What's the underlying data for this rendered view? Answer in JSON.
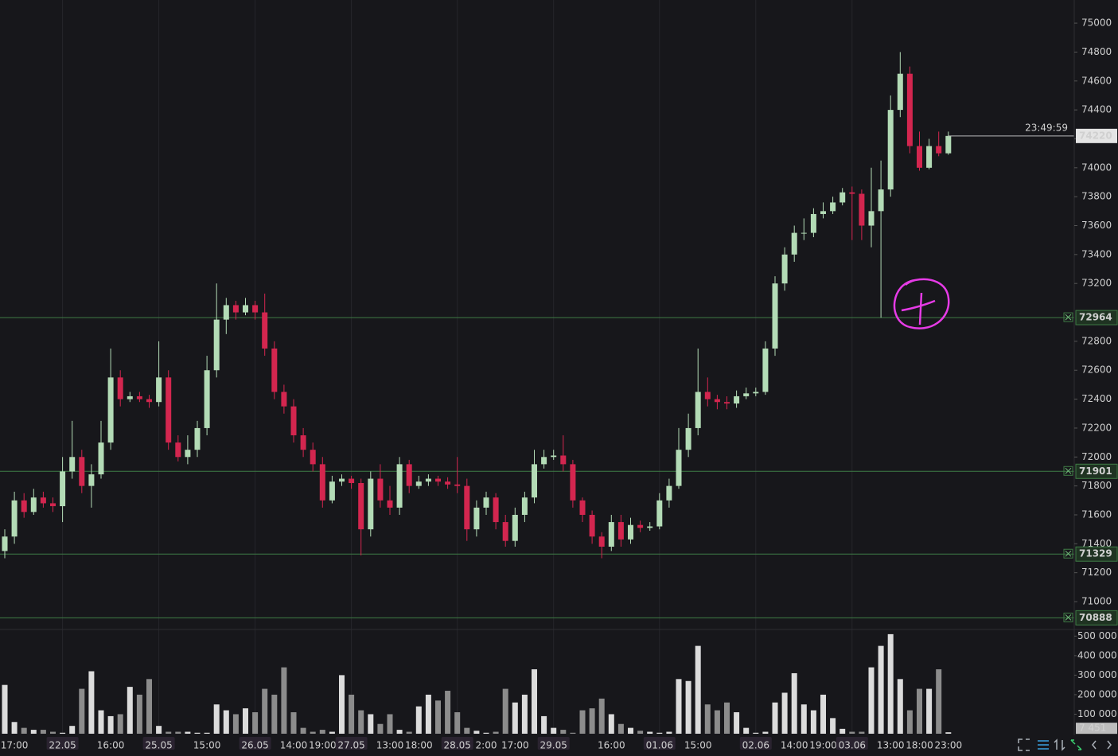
{
  "chart_data": {
    "type": "candlestick",
    "categories": [
      null,
      "17:00",
      null,
      null,
      null,
      null,
      "22.05",
      null,
      null,
      null,
      null,
      "16:00",
      null,
      null,
      null,
      null,
      "25.05",
      null,
      null,
      null,
      null,
      "15:00",
      null,
      null,
      null,
      null,
      "26.05",
      null,
      null,
      null,
      "14:00",
      null,
      null,
      "19:00",
      null,
      null,
      "27.05",
      null,
      null,
      null,
      "13:00",
      null,
      null,
      "18:00",
      null,
      null,
      null,
      "28.05",
      null,
      null,
      "2:00",
      null,
      null,
      "17:00",
      null,
      null,
      null,
      "29.05",
      null,
      null,
      null,
      null,
      null,
      "16:00",
      null,
      null,
      null,
      null,
      "01.06",
      null,
      null,
      null,
      "15:00",
      null,
      null,
      null,
      null,
      null,
      "02.06",
      null,
      null,
      null,
      "14:00",
      null,
      null,
      "19:00",
      null,
      null,
      "03.06",
      null,
      null,
      null,
      "13:00",
      null,
      null,
      "18:00",
      null,
      null,
      "23:00"
    ],
    "open": [
      71350,
      71450,
      71700,
      71620,
      71720,
      71680,
      71660,
      71900,
      72000,
      71800,
      71880,
      72100,
      72550,
      72400,
      72420,
      72400,
      72380,
      72550,
      72100,
      72000,
      72050,
      72200,
      72600,
      72950,
      73050,
      73000,
      73050,
      73000,
      72750,
      72450,
      72350,
      72150,
      72050,
      71950,
      71700,
      71830,
      71850,
      71820,
      71500,
      71850,
      71700,
      71650,
      71950,
      71800,
      71830,
      71850,
      71830,
      71810,
      71800,
      71500,
      71650,
      71720,
      71550,
      71420,
      71600,
      71720,
      71950,
      72000,
      72010,
      71950,
      71700,
      71600,
      71450,
      71380,
      71550,
      71430,
      71530,
      71510,
      71520,
      71700,
      71800,
      72050,
      72200,
      72450,
      72400,
      72380,
      72370,
      72420,
      72440,
      72450,
      72750,
      73200,
      73400,
      73550,
      73550,
      73680,
      73700,
      73760,
      73830,
      73820,
      73600,
      73700,
      73850,
      74400,
      74650,
      74150,
      74000,
      74150,
      74100
    ],
    "high": [
      71500,
      71760,
      71750,
      71780,
      71760,
      71720,
      72000,
      72250,
      72050,
      71950,
      72250,
      72750,
      72600,
      72450,
      72450,
      72430,
      72800,
      72600,
      72150,
      72150,
      72250,
      72700,
      73200,
      73100,
      73080,
      73100,
      73080,
      73130,
      72800,
      72500,
      72400,
      72200,
      72100,
      72000,
      71870,
      71880,
      71870,
      71850,
      71900,
      71950,
      71800,
      72000,
      71980,
      71870,
      71880,
      71870,
      71860,
      72000,
      71850,
      71700,
      71760,
      71750,
      71600,
      71650,
      71760,
      72050,
      72050,
      72050,
      72150,
      71980,
      71720,
      71630,
      71480,
      71600,
      71600,
      71580,
      71560,
      71550,
      71750,
      71850,
      72200,
      72300,
      72750,
      72550,
      72430,
      72420,
      72460,
      72480,
      72480,
      72800,
      73250,
      73450,
      73600,
      73650,
      73720,
      73760,
      73800,
      73860,
      73870,
      73850,
      74000,
      74050,
      74500,
      74800,
      74700,
      74250,
      74200,
      74250,
      74250
    ],
    "low": [
      71300,
      71400,
      71580,
      71600,
      71650,
      71620,
      71550,
      71850,
      71750,
      71650,
      71850,
      72050,
      72350,
      72380,
      72380,
      72340,
      72350,
      72050,
      71970,
      71950,
      72000,
      72150,
      72550,
      72850,
      72950,
      72980,
      72950,
      72700,
      72400,
      72300,
      72100,
      72000,
      71900,
      71650,
      71680,
      71800,
      71780,
      71320,
      71450,
      71650,
      71600,
      71600,
      71750,
      71780,
      71800,
      71800,
      71780,
      71750,
      71420,
      71450,
      71600,
      71500,
      71380,
      71380,
      71550,
      71680,
      71920,
      71980,
      71900,
      71650,
      71550,
      71400,
      71300,
      71350,
      71380,
      71400,
      71480,
      71490,
      71500,
      71650,
      71780,
      72000,
      72150,
      72350,
      72330,
      72330,
      72340,
      72400,
      72420,
      72430,
      72700,
      73150,
      73350,
      73500,
      73520,
      73650,
      73680,
      73740,
      73500,
      73500,
      73450,
      72964,
      73800,
      74350,
      74100,
      73980,
      73990,
      74080,
      74090
    ],
    "close": [
      71450,
      71700,
      71620,
      71720,
      71680,
      71660,
      71900,
      72000,
      71800,
      71880,
      72100,
      72550,
      72400,
      72420,
      72400,
      72380,
      72550,
      72100,
      72000,
      72050,
      72200,
      72600,
      72950,
      73050,
      73000,
      73050,
      73000,
      72750,
      72450,
      72350,
      72150,
      72050,
      71950,
      71700,
      71830,
      71850,
      71820,
      71500,
      71850,
      71700,
      71650,
      71950,
      71800,
      71830,
      71850,
      71830,
      71810,
      71800,
      71500,
      71650,
      71720,
      71550,
      71420,
      71600,
      71720,
      71950,
      72000,
      72010,
      71950,
      71700,
      71600,
      71450,
      71380,
      71550,
      71430,
      71530,
      71510,
      71520,
      71700,
      71800,
      72050,
      72200,
      72450,
      72400,
      72380,
      72370,
      72420,
      72440,
      72450,
      72750,
      73200,
      73400,
      73550,
      73550,
      73680,
      73700,
      73760,
      73830,
      73820,
      73600,
      73700,
      73850,
      74400,
      74650,
      74150,
      74000,
      74150,
      74100,
      74220
    ],
    "up_color": "#b3dbb6",
    "down_color": "#d3264f",
    "ylim": [
      70813,
      75160
    ],
    "yticks": [
      71000,
      71200,
      71400,
      71600,
      71800,
      72000,
      72200,
      72400,
      72600,
      72800,
      73200,
      73400,
      73600,
      73800,
      74000,
      74200,
      74400,
      74600,
      74800,
      75000
    ],
    "price_lines": [
      72964,
      71901,
      71329,
      70888
    ],
    "price_line_color": "#3f7d46",
    "last_price": 74220,
    "countdown": "23:49:59",
    "volume": {
      "values": [
        250000,
        60000,
        30000,
        20000,
        20000,
        10000,
        5000,
        40000,
        230000,
        320000,
        120000,
        90000,
        100000,
        240000,
        200000,
        280000,
        40000,
        10000,
        10000,
        10000,
        5000,
        5000,
        150000,
        120000,
        100000,
        130000,
        110000,
        230000,
        200000,
        340000,
        110000,
        30000,
        10000,
        20000,
        10000,
        300000,
        200000,
        120000,
        100000,
        50000,
        100000,
        20000,
        10000,
        140000,
        200000,
        170000,
        220000,
        110000,
        30000,
        15000,
        5000,
        10000,
        230000,
        160000,
        200000,
        330000,
        90000,
        30000,
        20000,
        5000,
        120000,
        130000,
        180000,
        100000,
        50000,
        30000,
        15000,
        10000,
        5000,
        10000,
        280000,
        270000,
        450000,
        150000,
        120000,
        160000,
        110000,
        30000,
        5000,
        10000,
        160000,
        210000,
        310000,
        150000,
        120000,
        200000,
        80000,
        25000,
        10000,
        10000,
        340000,
        450000,
        510000,
        280000,
        120000,
        230000,
        230000,
        330000,
        7451
      ],
      "last_label": "7 451",
      "ylim": [
        0,
        530000
      ],
      "yticks": [
        {
          "value": 100000,
          "label": "100 000"
        },
        {
          "value": 200000,
          "label": "200 000"
        },
        {
          "value": 300000,
          "label": "300 000"
        },
        {
          "value": 400000,
          "label": "400 000"
        },
        {
          "value": 500000,
          "label": "500 000"
        }
      ],
      "up_color": "#dcdcdc",
      "down_color": "#8c8c8c"
    }
  }
}
